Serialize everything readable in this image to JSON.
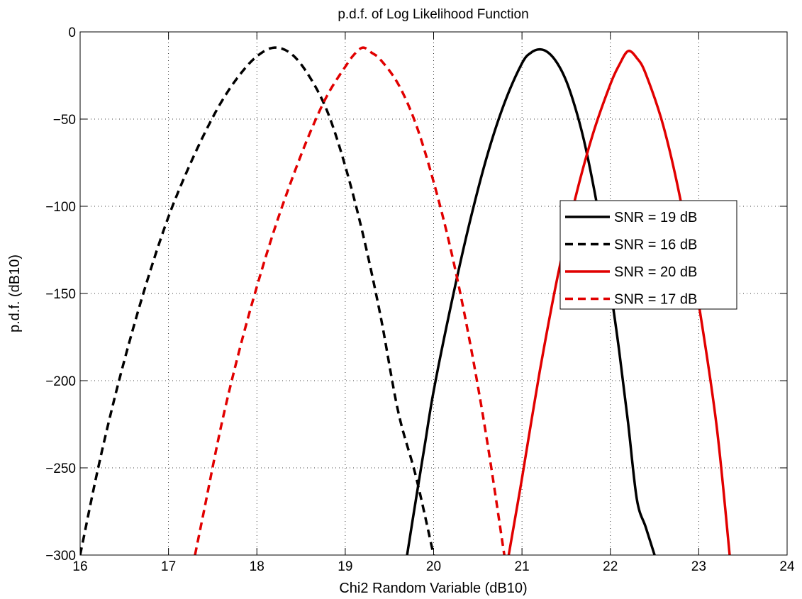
{
  "chart_data": {
    "type": "line",
    "title": "p.d.f. of Log Likelihood Function",
    "xlabel": "Chi2 Random Variable (dB10)",
    "ylabel": "p.d.f. (dB10)",
    "xlim": [
      16,
      24
    ],
    "ylim": [
      -300,
      0
    ],
    "x_ticks": [
      16,
      17,
      18,
      19,
      20,
      21,
      22,
      23,
      24
    ],
    "y_ticks": [
      0,
      -50,
      -100,
      -150,
      -200,
      -250,
      -300
    ],
    "x_tick_labels": [
      "16",
      "17",
      "18",
      "19",
      "20",
      "21",
      "22",
      "23",
      "24"
    ],
    "y_tick_labels": [
      "0",
      "−50",
      "−100",
      "−150",
      "−200",
      "−250",
      "−300"
    ],
    "grid": true,
    "grid_style": "dotted",
    "legend_position": "right",
    "series": [
      {
        "name": "SNR = 19 dB",
        "color": "#000000",
        "dash": "solid",
        "x": [
          19.7,
          19.8,
          19.9,
          20.0,
          20.2,
          20.4,
          20.6,
          20.8,
          21.0,
          21.1,
          21.2,
          21.3,
          21.4,
          21.5,
          21.6,
          21.7,
          21.8,
          21.9,
          22.0,
          22.1,
          22.2,
          22.3,
          22.4,
          22.5
        ],
        "y": [
          -300,
          -268,
          -237,
          -206,
          -156,
          -111,
          -72,
          -41,
          -18,
          -12,
          -10,
          -12,
          -18,
          -28,
          -43,
          -62,
          -86,
          -114,
          -147,
          -183,
          -224,
          -268,
          -284,
          -300
        ]
      },
      {
        "name": "SNR = 16 dB",
        "color": "#000000",
        "dash": "dashed",
        "x": [
          16.0,
          16.2,
          16.4,
          16.6,
          16.8,
          17.0,
          17.2,
          17.4,
          17.6,
          17.8,
          18.0,
          18.2,
          18.4,
          18.6,
          18.8,
          19.0,
          19.2,
          19.4,
          19.6,
          19.8,
          20.0
        ],
        "y": [
          -300,
          -251,
          -208,
          -170,
          -136,
          -106,
          -81,
          -59,
          -40,
          -25,
          -14,
          -9,
          -13,
          -26,
          -46,
          -77,
          -116,
          -163,
          -218,
          -255,
          -300
        ]
      },
      {
        "name": "SNR = 20 dB",
        "color": "#e10000",
        "dash": "solid",
        "x": [
          20.85,
          21.0,
          21.2,
          21.4,
          21.6,
          21.8,
          22.0,
          22.1,
          22.2,
          22.3,
          22.4,
          22.6,
          22.8,
          23.0,
          23.2,
          23.35
        ],
        "y": [
          -300,
          -256,
          -195,
          -141,
          -96,
          -59,
          -30,
          -19,
          -11,
          -15,
          -24,
          -54,
          -98,
          -156,
          -225,
          -300
        ]
      },
      {
        "name": "SNR = 17 dB",
        "color": "#e10000",
        "dash": "dashed",
        "x": [
          17.3,
          17.4,
          17.6,
          17.8,
          18.0,
          18.2,
          18.4,
          18.6,
          18.8,
          19.0,
          19.1,
          19.2,
          19.3,
          19.4,
          19.6,
          19.8,
          20.0,
          20.2,
          20.4,
          20.6,
          20.8
        ],
        "y": [
          -300,
          -275,
          -225,
          -183,
          -146,
          -113,
          -84,
          -58,
          -36,
          -20,
          -13,
          -9,
          -12,
          -16,
          -30,
          -53,
          -86,
          -126,
          -175,
          -233,
          -300
        ]
      }
    ]
  }
}
